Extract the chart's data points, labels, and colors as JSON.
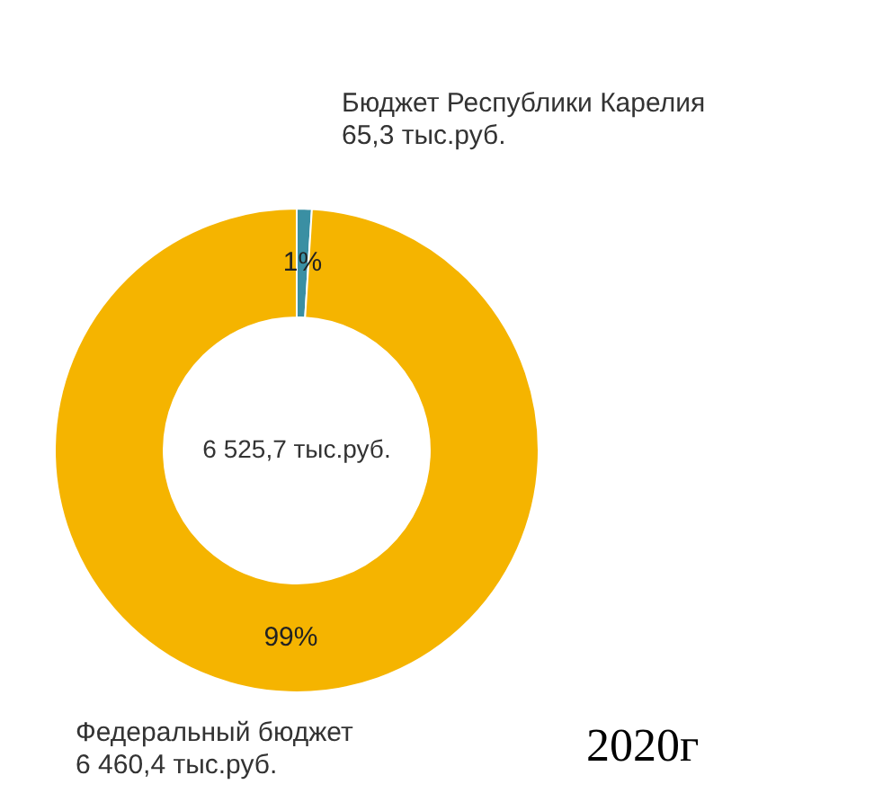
{
  "chart_data": {
    "type": "donut",
    "title": "2020г",
    "categories": [
      "Бюджет Республики Карелия",
      "Федеральный бюджет"
    ],
    "values": [
      1,
      99
    ],
    "colors": [
      "#3a8fa3",
      "#f5b400"
    ],
    "value_labels": [
      "1%",
      "99%"
    ],
    "annotations": [
      "65,3 тыс.руб.",
      "6 460,4 тыс.руб.",
      "6 525,7 тыс.руб."
    ],
    "legend": false
  }
}
